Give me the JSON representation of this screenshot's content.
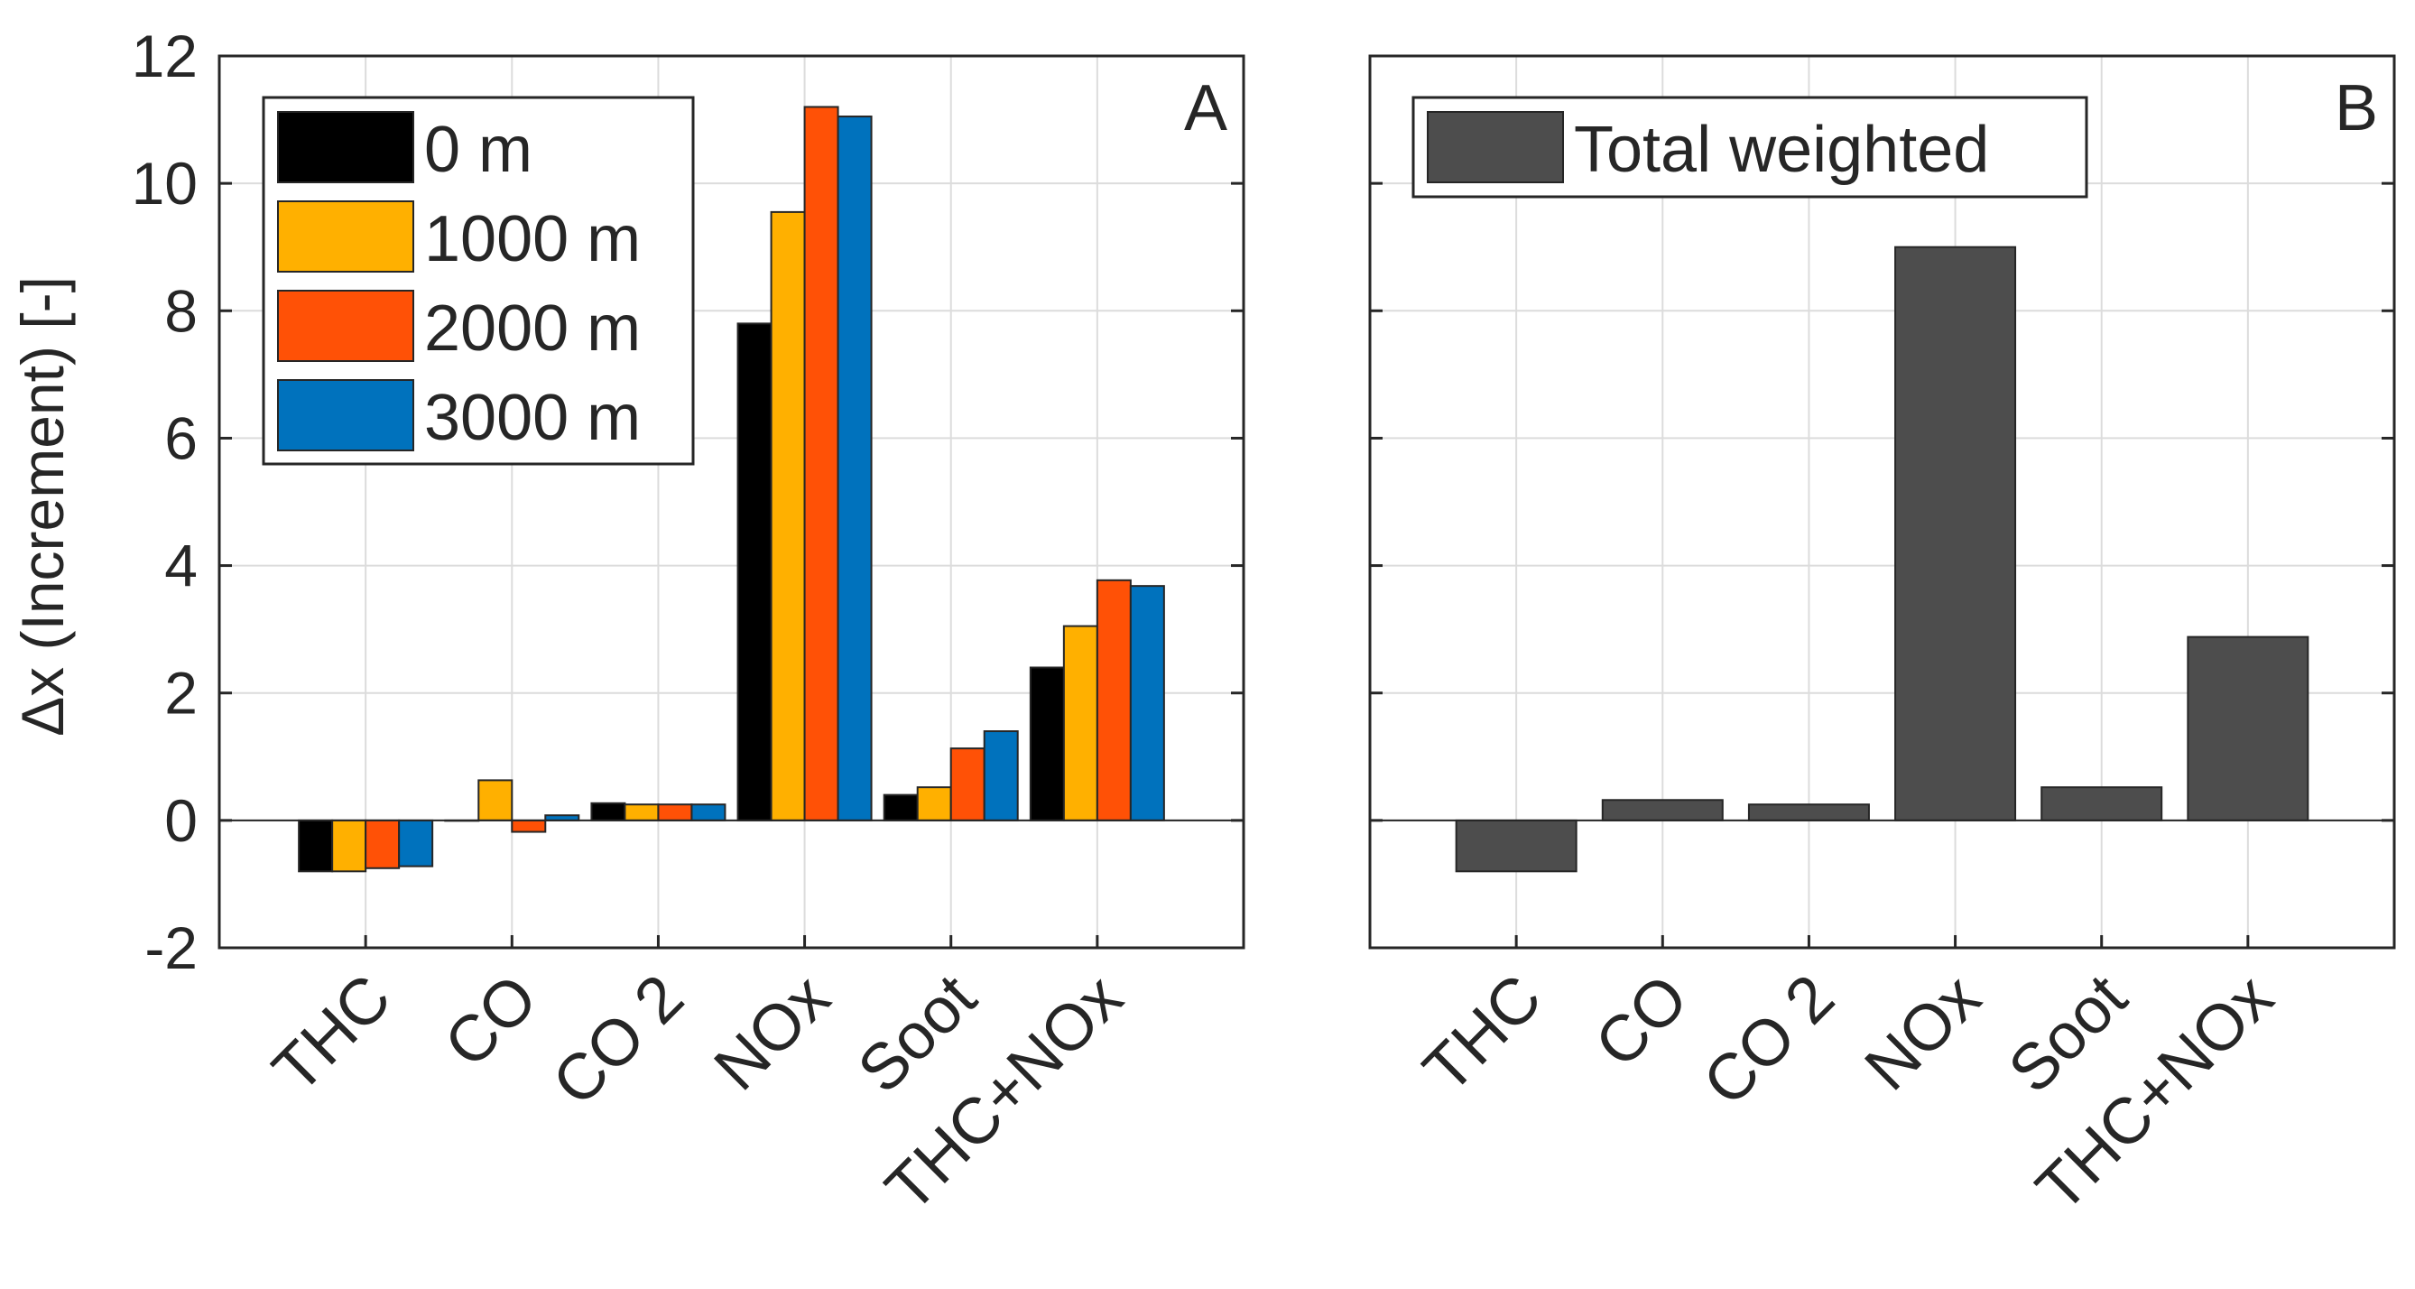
{
  "chart_data": [
    {
      "panel": "A",
      "type": "bar",
      "categories": [
        "THC",
        "CO",
        "CO 2",
        "NOx",
        "Soot",
        "THC+NOx"
      ],
      "series": [
        {
          "name": "0 m",
          "color": "#000000",
          "values": [
            -0.8,
            0.0,
            0.27,
            7.8,
            0.4,
            2.4
          ]
        },
        {
          "name": "1000 m",
          "color": "#FFB000",
          "values": [
            -0.8,
            0.63,
            0.25,
            9.55,
            0.52,
            3.05
          ]
        },
        {
          "name": "2000 m",
          "color": "#FF5106",
          "values": [
            -0.75,
            -0.18,
            0.25,
            11.2,
            1.13,
            3.77
          ]
        },
        {
          "name": "3000 m",
          "color": "#0072BD",
          "values": [
            -0.72,
            0.08,
            0.25,
            11.05,
            1.4,
            3.68
          ]
        }
      ],
      "ylabel": "Δx (Increment) [-]",
      "ylim": [
        -2,
        12
      ],
      "yticks": [
        -2,
        0,
        2,
        4,
        6,
        8,
        10,
        12
      ],
      "grid": true,
      "legend_position": "top-left"
    },
    {
      "panel": "B",
      "type": "bar",
      "categories": [
        "THC",
        "CO",
        "CO 2",
        "NOx",
        "Soot",
        "THC+NOx"
      ],
      "series": [
        {
          "name": "Total weighted",
          "color": "#4D4D4D",
          "values": [
            -0.8,
            0.32,
            0.25,
            9.0,
            0.52,
            2.88
          ]
        }
      ],
      "ylim": [
        -2,
        12
      ],
      "grid": true,
      "legend_position": "top-left"
    }
  ]
}
